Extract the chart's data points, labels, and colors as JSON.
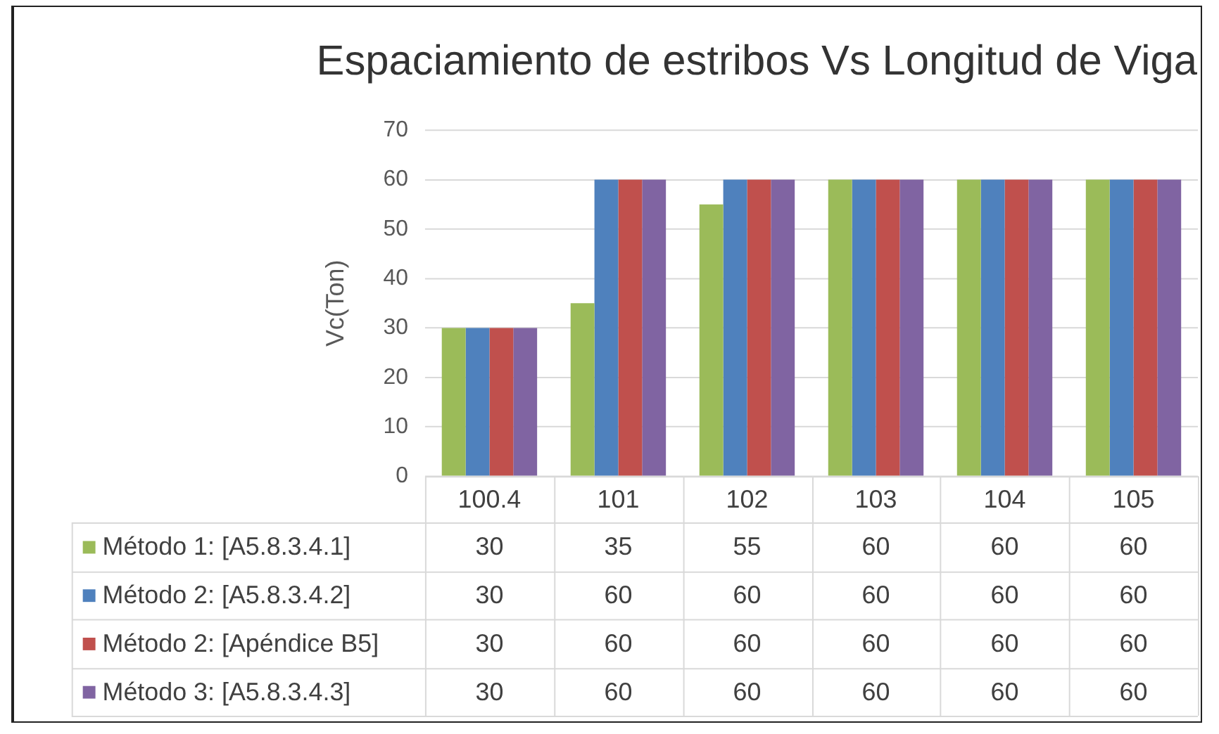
{
  "chart_data": {
    "type": "bar",
    "title": "Espaciamiento de estribos Vs Longitud de Viga",
    "ylabel": "Vc(Ton)",
    "categories": [
      "100.4",
      "101",
      "102",
      "103",
      "104",
      "105"
    ],
    "series": [
      {
        "name": "Método 1: [A5.8.3.4.1]",
        "color": "#9bbb59",
        "values": [
          30,
          35,
          55,
          60,
          60,
          60
        ]
      },
      {
        "name": "Método 2: [A5.8.3.4.2]",
        "color": "#4f81bd",
        "values": [
          30,
          60,
          60,
          60,
          60,
          60
        ]
      },
      {
        "name": "Método 2: [Apéndice B5]",
        "color": "#c0504d",
        "values": [
          30,
          60,
          60,
          60,
          60,
          60
        ]
      },
      {
        "name": "Método 3: [A5.8.3.4.3]",
        "color": "#8064a2",
        "values": [
          30,
          60,
          60,
          60,
          60,
          60
        ]
      }
    ],
    "ylim": [
      0,
      70
    ],
    "yticks": [
      0,
      10,
      20,
      30,
      40,
      50,
      60,
      70
    ],
    "grid": "y",
    "legend": "bottom",
    "data_labels": true
  }
}
